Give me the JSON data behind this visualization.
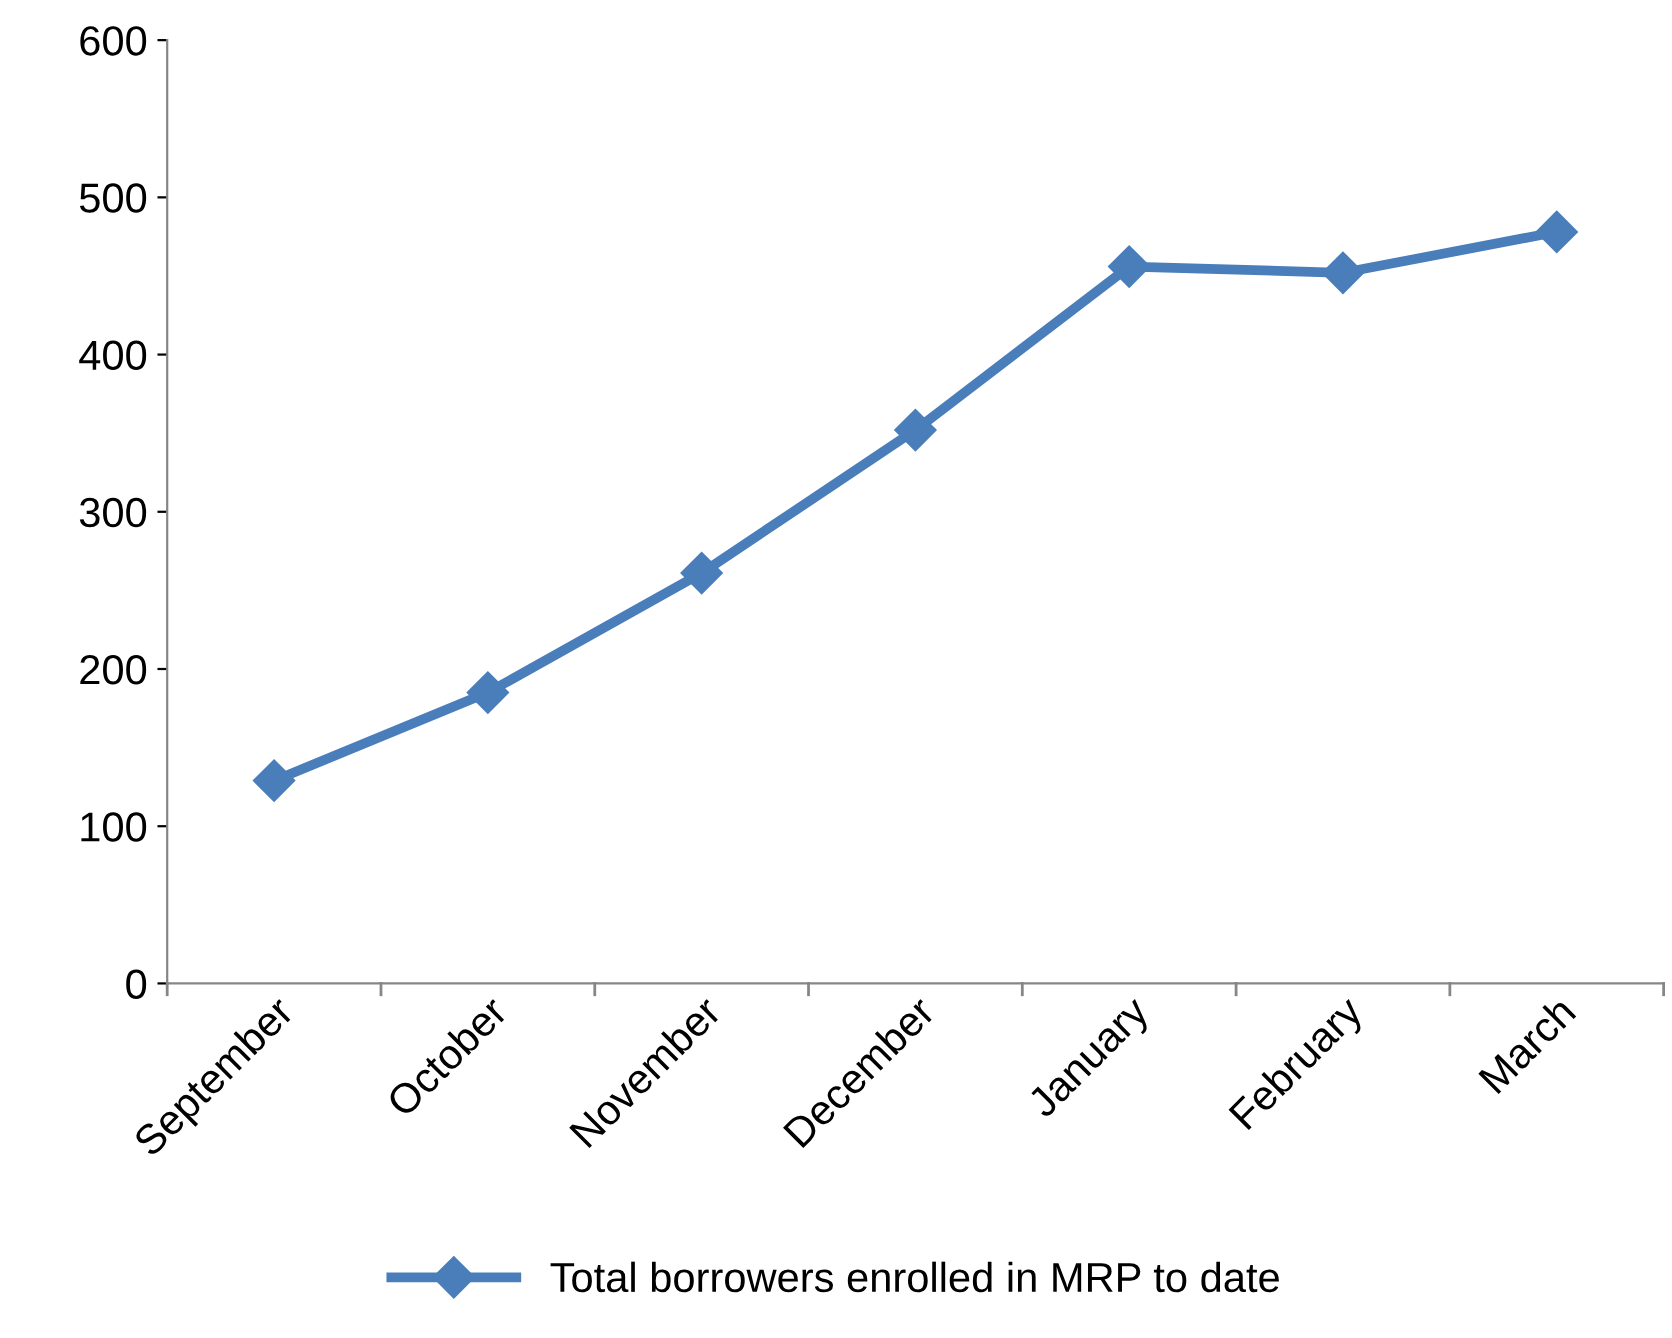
{
  "chart_data": {
    "type": "line",
    "categories": [
      "September",
      "October",
      "November",
      "December",
      "January",
      "February",
      "March"
    ],
    "series": [
      {
        "name": "Total borrowers enrolled in MRP to date",
        "color": "#4a7ebb",
        "values": [
          129,
          185,
          261,
          352,
          456,
          452,
          478
        ]
      }
    ],
    "ylim": [
      0,
      600
    ],
    "yticks": [
      0,
      100,
      200,
      300,
      400,
      500,
      600
    ],
    "grid": false,
    "legend": "bottom",
    "marker": "diamond",
    "line_style": "solid"
  }
}
